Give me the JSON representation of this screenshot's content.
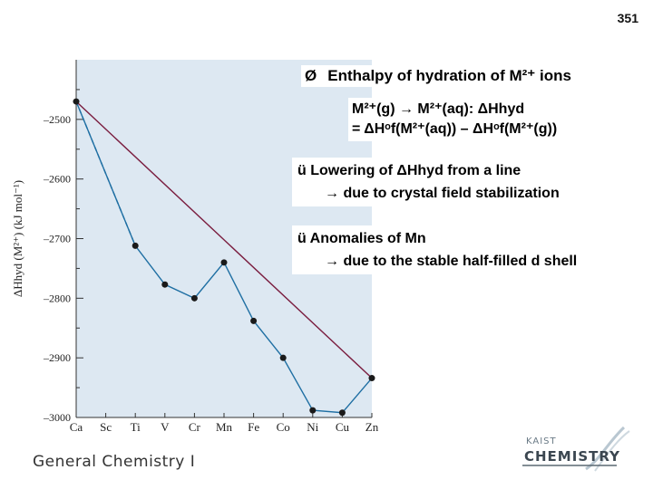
{
  "page_number": "351",
  "title": {
    "bullet": "Ø",
    "text": "Enthalpy of hydration of M²⁺ ions"
  },
  "equation": {
    "line1": "M²⁺(g) → M²⁺(aq):  ΔHhyd",
    "line2": "= ΔHᵒf(M²⁺(aq)) – ΔHᵒf(M²⁺(g))"
  },
  "notes": [
    {
      "check": "ü",
      "line1": "Lowering of ΔHhyd from a line",
      "line2": "→ due to crystal field stabilization"
    },
    {
      "check": "ü",
      "line1": "Anomalies of Mn",
      "line2": "→ due to the stable half-filled d shell"
    }
  ],
  "footer": "General Chemistry I",
  "logo": {
    "small": "KAIST",
    "big": "CHEMISTRY"
  },
  "colors": {
    "plot_bg": "#dde8f2",
    "line_experimental": "#1f6fa3",
    "line_reference": "#7a1d3f",
    "marker": "#1a1a1a"
  },
  "chart_data": {
    "type": "line",
    "categories": [
      "Ca",
      "Sc",
      "Ti",
      "V",
      "Cr",
      "Mn",
      "Fe",
      "Co",
      "Ni",
      "Cu",
      "Zn"
    ],
    "ylabel": "ΔHhyd (M²⁺) (kJ mol⁻¹)",
    "ylim": [
      -3000,
      -2400
    ],
    "yticks": [
      -2500,
      -2600,
      -2700,
      -2800,
      -2900,
      -3000
    ],
    "series": [
      {
        "style": "experimental",
        "points": [
          [
            "Ca",
            -2470
          ],
          [
            "Ti",
            -2712
          ],
          [
            "V",
            -2777
          ],
          [
            "Cr",
            -2800
          ],
          [
            "Mn",
            -2740
          ],
          [
            "Fe",
            -2838
          ],
          [
            "Co",
            -2900
          ],
          [
            "Ni",
            -2988
          ],
          [
            "Cu",
            -2992
          ],
          [
            "Zn",
            -2934
          ]
        ]
      },
      {
        "style": "dashed",
        "points": [
          [
            "Ca",
            -2470
          ],
          [
            "Ti",
            -2712
          ]
        ]
      },
      {
        "style": "reference",
        "points": [
          [
            "Ca",
            -2470
          ],
          [
            "Zn",
            -2934
          ]
        ]
      }
    ]
  }
}
